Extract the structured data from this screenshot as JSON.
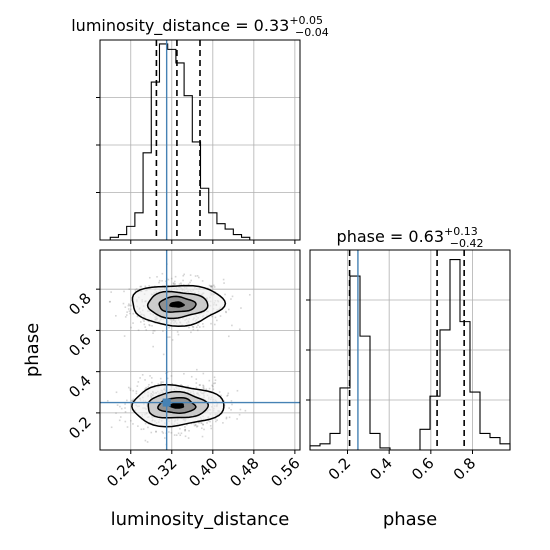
{
  "chart_data": {
    "type": "corner",
    "parameters": [
      "luminosity_distance",
      "phase"
    ],
    "truth": {
      "luminosity_distance": 0.31,
      "phase": 0.25
    },
    "panels": [
      {
        "id": "hist-luminosity_distance",
        "type": "histogram",
        "parameter": "luminosity_distance",
        "title": {
          "main": "luminosity_distance = 0.33",
          "sup": "+0.05",
          "sub": "−0.04"
        },
        "xlim": [
          0.18,
          0.57
        ],
        "xticks": [
          0.24,
          0.32,
          0.4,
          0.48,
          0.56
        ],
        "bin_edges": [
          0.2,
          0.216,
          0.232,
          0.248,
          0.264,
          0.28,
          0.296,
          0.312,
          0.328,
          0.344,
          0.36,
          0.376,
          0.392,
          0.408,
          0.424,
          0.44,
          0.456,
          0.472,
          0.488
        ],
        "counts": [
          1,
          2,
          5,
          10,
          32,
          58,
          72,
          70,
          65,
          53,
          36,
          19,
          10,
          6,
          4,
          2,
          1,
          0
        ],
        "quantiles": [
          0.29,
          0.33,
          0.375
        ],
        "truth": 0.31
      },
      {
        "id": "hist-phase",
        "type": "histogram",
        "parameter": "phase",
        "title": {
          "main": "phase = 0.63",
          "sup": "+0.13",
          "sub": "−0.42"
        },
        "xlim": [
          0.02,
          0.98
        ],
        "xticks": [
          0.2,
          0.4,
          0.6,
          0.8
        ],
        "bin_edges": [
          0.02,
          0.068,
          0.116,
          0.164,
          0.212,
          0.26,
          0.308,
          0.356,
          0.404,
          0.452,
          0.5,
          0.548,
          0.596,
          0.644,
          0.692,
          0.74,
          0.788,
          0.836,
          0.884,
          0.932,
          0.98
        ],
        "counts": [
          2,
          3,
          8,
          30,
          84,
          55,
          8,
          1,
          0,
          0,
          0,
          10,
          26,
          58,
          92,
          62,
          28,
          8,
          6,
          3
        ],
        "quantiles": [
          0.21,
          0.63,
          0.76
        ],
        "truth": 0.25
      },
      {
        "id": "scatter-phase-vs-luminosity_distance",
        "type": "2d-density",
        "x": "luminosity_distance",
        "y": "phase",
        "xlim": [
          0.18,
          0.57
        ],
        "ylim": [
          0.02,
          0.99
        ],
        "xticks": [
          0.24,
          0.32,
          0.4,
          0.48,
          0.56
        ],
        "yticks": [
          0.2,
          0.4,
          0.6,
          0.8
        ],
        "clusters": [
          {
            "center": [
              0.33,
              0.725
            ],
            "spread": [
              0.045,
              0.06
            ]
          },
          {
            "center": [
              0.33,
              0.235
            ],
            "spread": [
              0.045,
              0.06
            ]
          }
        ],
        "contour_levels": 4,
        "truth": [
          0.31,
          0.25
        ]
      }
    ],
    "axis_labels": {
      "x": [
        "luminosity_distance",
        "phase"
      ],
      "y": [
        "phase"
      ]
    },
    "grid": true
  }
}
